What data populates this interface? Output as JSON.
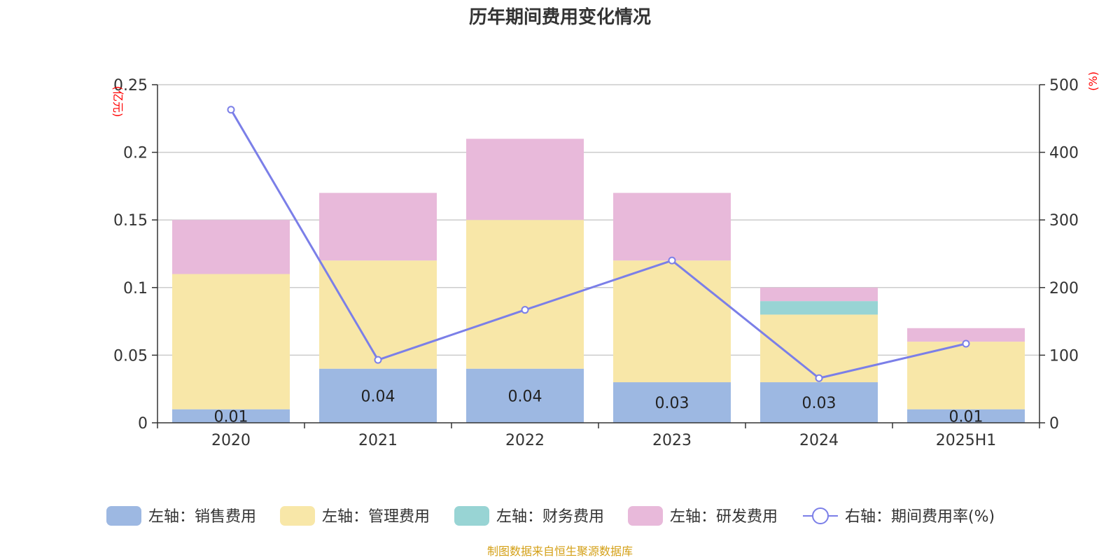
{
  "chart_data": {
    "type": "bar",
    "title": "历年期间费用变化情况",
    "categories": [
      "2020",
      "2021",
      "2022",
      "2023",
      "2024",
      "2025H1"
    ],
    "left_axis": {
      "unit": "(亿元)",
      "ylim": [
        0,
        0.25
      ],
      "ticks": [
        "0",
        "0.05",
        "0.1",
        "0.15",
        "0.2",
        "0.25"
      ],
      "tick_values": [
        0,
        0.05,
        0.1,
        0.15,
        0.2,
        0.25
      ]
    },
    "right_axis": {
      "unit": "(%)",
      "ylim": [
        0,
        500
      ],
      "ticks": [
        "0",
        "100",
        "200",
        "300",
        "400",
        "500"
      ],
      "tick_values": [
        0,
        100,
        200,
        300,
        400,
        500
      ]
    },
    "series": [
      {
        "name": "左轴：销售费用",
        "type": "bar",
        "color": "#9db8e2",
        "values": [
          0.01,
          0.04,
          0.04,
          0.03,
          0.03,
          0.01
        ],
        "labels": [
          "0.01",
          "0.04",
          "0.04",
          "0.03",
          "0.03",
          "0.01"
        ]
      },
      {
        "name": "左轴：管理费用",
        "type": "bar",
        "color": "#f8e7a8",
        "values": [
          0.1,
          0.08,
          0.11,
          0.09,
          0.05,
          0.05
        ]
      },
      {
        "name": "左轴：财务费用",
        "type": "bar",
        "color": "#98d4d4",
        "values": [
          0.0,
          0.0,
          0.0,
          0.0,
          0.01,
          0.0
        ]
      },
      {
        "name": "左轴：研发费用",
        "type": "bar",
        "color": "#e8b9da",
        "values": [
          0.04,
          0.05,
          0.06,
          0.05,
          0.01,
          0.01
        ]
      },
      {
        "name": "右轴：期间费用率(%)",
        "type": "line",
        "color": "#7b7fe8",
        "values": [
          463,
          93,
          167,
          240,
          66,
          117
        ]
      }
    ],
    "grid": true,
    "legend_position": "bottom"
  },
  "source": "制图数据来自恒生聚源数据库"
}
